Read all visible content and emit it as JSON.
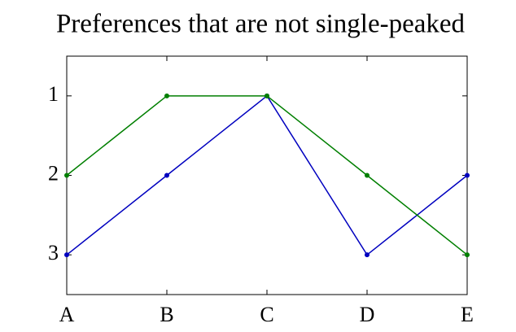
{
  "chart_data": {
    "type": "line",
    "title": "Preferences that are not single-peaked",
    "categories": [
      "A",
      "B",
      "C",
      "D",
      "E"
    ],
    "series": [
      {
        "color": "#0000bf",
        "values": [
          3,
          2,
          1,
          3,
          2
        ]
      },
      {
        "color": "#007f00",
        "values": [
          2,
          1,
          1,
          2,
          3
        ]
      }
    ],
    "ylim": [
      0.5,
      3.5
    ],
    "yticks": [
      1,
      2,
      3
    ],
    "y_inverted": true
  }
}
